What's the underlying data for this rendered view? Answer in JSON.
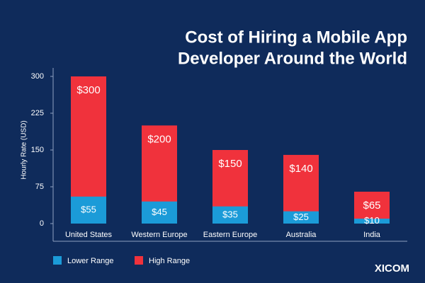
{
  "chart_data": {
    "type": "bar",
    "title": [
      "Cost of Hiring a Mobile App",
      "Developer Around the World"
    ],
    "y_label": "Hourly Rate (USD)",
    "categories": [
      "United States",
      "Western Europe",
      "Eastern Europe",
      "Australia",
      "India"
    ],
    "series": [
      {
        "name": "High Range",
        "color": "#f0323c",
        "values": [
          300,
          200,
          150,
          140,
          65
        ],
        "value_labels": [
          "$300",
          "$200",
          "$150",
          "$140",
          "$65"
        ]
      },
      {
        "name": "Lower Range",
        "color": "#1b9bd8",
        "values": [
          55,
          45,
          35,
          25,
          10
        ],
        "value_labels": [
          "$55",
          "$45",
          "$35",
          "$25",
          "$10"
        ]
      }
    ],
    "legend_order": [
      1,
      0
    ],
    "ylim": [
      0,
      300
    ],
    "yticks": [
      0,
      75,
      150,
      225,
      300
    ]
  },
  "brand": "XICOM"
}
